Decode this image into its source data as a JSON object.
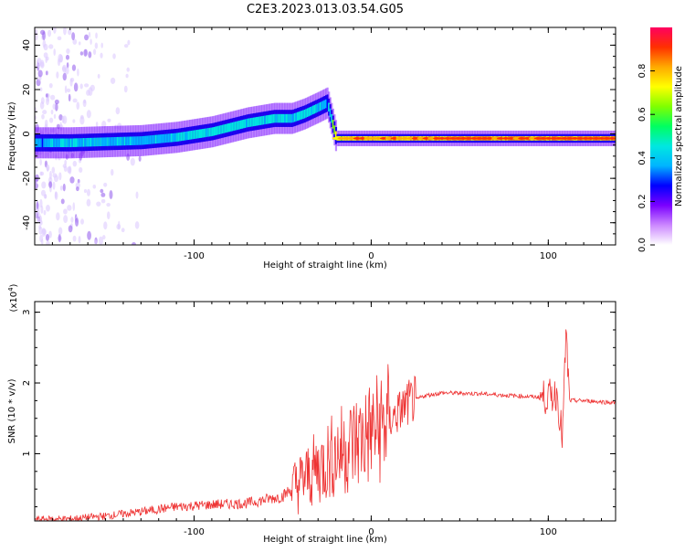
{
  "title": "C2E3.2023.013.03.54.G05",
  "chart_data": [
    {
      "type": "heatmap",
      "title": "C2E3.2023.013.03.54.G05",
      "xlabel": "Height of straight line (km)",
      "ylabel": "Frequency (Hz)",
      "xlim": [
        -190,
        138
      ],
      "ylim": [
        -50,
        48
      ],
      "x_ticks": [
        -100,
        0,
        100
      ],
      "y_ticks": [
        -40,
        -20,
        0,
        20,
        40
      ],
      "grid": false,
      "colorbar": {
        "label": "Normalized spectral amplitude",
        "range": [
          0,
          1
        ],
        "ticks": [
          "0.0",
          "0.2",
          "0.4",
          "0.6",
          "0.8"
        ],
        "colors": [
          "#ffffff",
          "#cc88ff",
          "#7a00ff",
          "#0000ff",
          "#00b4ff",
          "#00e8e0",
          "#00ff60",
          "#80ff00",
          "#ffff00",
          "#ffaa00",
          "#ff3000",
          "#ff0060"
        ]
      },
      "trace": {
        "x": [
          -190,
          -170,
          -150,
          -130,
          -110,
          -90,
          -70,
          -55,
          -45,
          -38,
          -30,
          -25,
          -20,
          -10,
          0,
          20,
          50,
          80,
          95,
          110,
          138
        ],
        "y": [
          -4,
          -4,
          -3.5,
          -3,
          -1.5,
          1,
          5,
          7,
          7,
          9,
          12,
          14,
          -2,
          -2,
          -2,
          -2,
          -2,
          -2,
          -2,
          -2,
          -2
        ],
        "amplitude": [
          0.4,
          0.45,
          0.45,
          0.4,
          0.45,
          0.5,
          0.5,
          0.5,
          0.45,
          0.5,
          0.45,
          0.4,
          0.75,
          0.8,
          0.8,
          0.8,
          0.85,
          0.85,
          0.85,
          0.85,
          0.85
        ]
      }
    },
    {
      "type": "line",
      "xlabel": "Height of straight line (km)",
      "ylabel": "SNR (10 * v/v)",
      "y_multiplier": "(x10",
      "y_multiplier_exp": "4",
      "y_multiplier_close": ")",
      "xlim": [
        -190,
        138
      ],
      "ylim": [
        0.05,
        3.15
      ],
      "x_ticks": [
        -100,
        0,
        100
      ],
      "y_ticks": [
        1,
        2,
        3
      ],
      "grid": false,
      "color": "#ee3333",
      "series": [
        {
          "x": [
            -190,
            -170,
            -150,
            -130,
            -110,
            -90,
            -70,
            -50,
            -40,
            -30,
            -20,
            -10,
            0,
            10,
            20,
            30,
            40,
            60,
            80,
            95,
            100,
            105,
            108,
            110,
            112,
            120,
            138
          ],
          "y": [
            0.07,
            0.08,
            0.12,
            0.18,
            0.25,
            0.28,
            0.3,
            0.4,
            0.6,
            0.8,
            1.0,
            1.15,
            1.3,
            1.45,
            1.7,
            1.82,
            1.86,
            1.85,
            1.82,
            1.8,
            1.8,
            1.85,
            1.2,
            2.7,
            1.75,
            1.75,
            1.72
          ]
        }
      ]
    }
  ]
}
